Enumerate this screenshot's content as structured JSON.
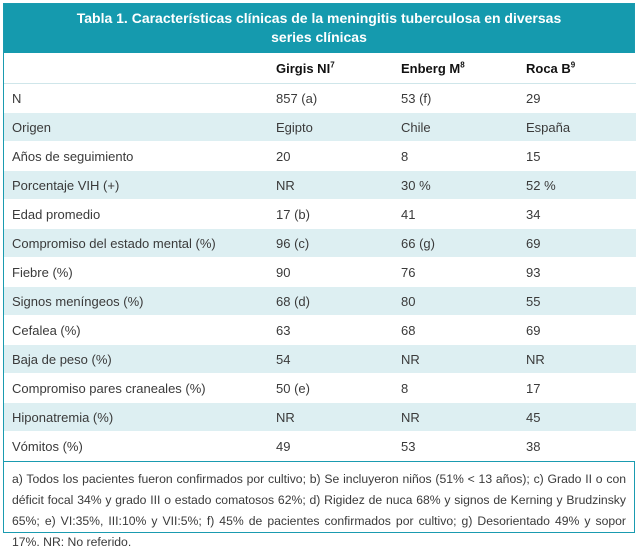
{
  "title": {
    "line1": "Tabla 1. Características clínicas de la meningitis tuberculosa en diversas",
    "line2": "series clínicas"
  },
  "headers": [
    {
      "name": "",
      "sup": ""
    },
    {
      "name": "Girgis NI",
      "sup": "7"
    },
    {
      "name": "Enberg M",
      "sup": "8"
    },
    {
      "name": "Roca B",
      "sup": "9"
    }
  ],
  "rows": [
    [
      "N",
      "857 (a)",
      "53 (f)",
      "29"
    ],
    [
      "Origen",
      "Egipto",
      "Chile",
      "España"
    ],
    [
      "Años de seguimiento",
      "20",
      "8",
      "15"
    ],
    [
      "Porcentaje VIH (+)",
      "NR",
      "30 %",
      "52 %"
    ],
    [
      "Edad promedio",
      "17 (b)",
      "41",
      "34"
    ],
    [
      "Compromiso del estado mental (%)",
      "96 (c)",
      "66 (g)",
      "69"
    ],
    [
      "Fiebre (%)",
      "90",
      "76",
      "93"
    ],
    [
      "Signos meníngeos (%)",
      "68 (d)",
      "80",
      "55"
    ],
    [
      "Cefalea (%)",
      "63",
      "68",
      "69"
    ],
    [
      "Baja de peso (%)",
      "54",
      "NR",
      "NR"
    ],
    [
      "Compromiso pares craneales (%)",
      "50 (e)",
      "8",
      "17"
    ],
    [
      "Hiponatremia (%)",
      "NR",
      "NR",
      "45"
    ],
    [
      "Vómitos (%)",
      "49",
      "53",
      "38"
    ]
  ],
  "footnote": "a) Todos los pacientes fueron confirmados por cultivo; b) Se incluyeron niños (51% < 13 años); c) Grado II o con déficit focal 34% y grado III o estado comatosos 62%; d) Rigidez de nuca 68% y signos de Kerning y Brudzinsky 65%; e) VI:35%, III:10% y VII:5%; f) 45% de pacientes confirmados por cultivo; g) Desorientado 49% y sopor 17%. NR: No referido.",
  "colors": {
    "header_bg": "#159aae",
    "stripe": "#ddeff2",
    "border": "#1a9bb0"
  }
}
